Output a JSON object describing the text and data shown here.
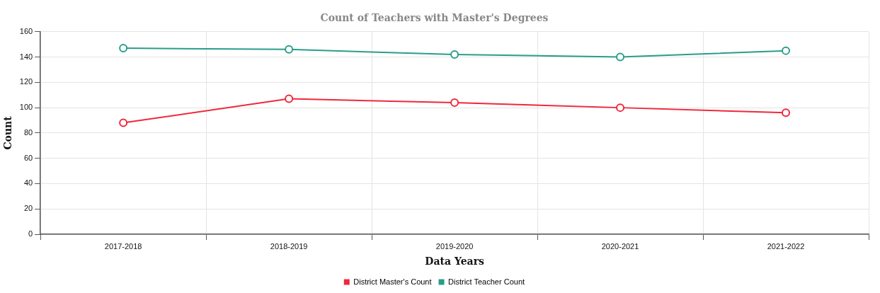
{
  "chart_data": {
    "type": "line",
    "title": "Count of Teachers with Master's Degrees",
    "xlabel": "Data Years",
    "ylabel": "Count",
    "categories": [
      "2017-2018",
      "2018-2019",
      "2019-2020",
      "2020-2021",
      "2021-2022"
    ],
    "series": [
      {
        "name": "District Master's Count",
        "color": "#f0283c",
        "values": [
          88,
          107,
          104,
          100,
          96
        ]
      },
      {
        "name": "District Teacher Count",
        "color": "#2a9d8a",
        "values": [
          147,
          146,
          142,
          140,
          145
        ]
      }
    ],
    "ylim": [
      0,
      160
    ],
    "yticks": [
      0,
      20,
      40,
      60,
      80,
      100,
      120,
      140,
      160
    ],
    "grid": true,
    "legend": "bottom",
    "marker": "circle",
    "line_style": "solid"
  }
}
